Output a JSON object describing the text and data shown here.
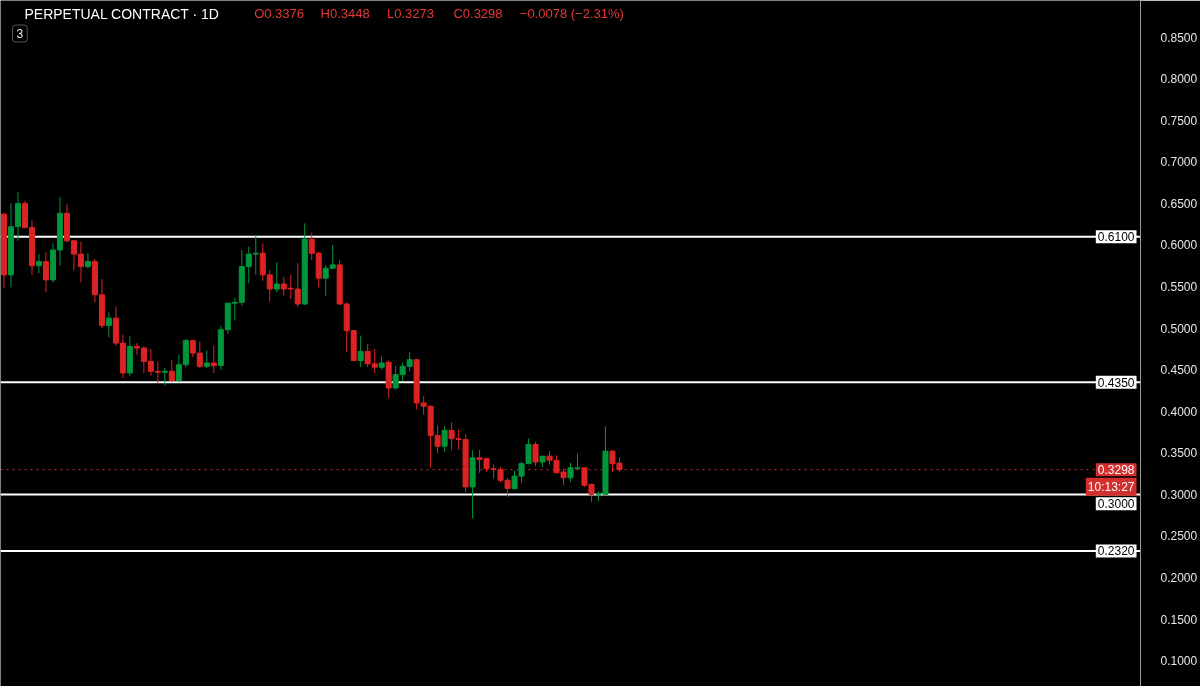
{
  "chart_data": {
    "type": "candlestick",
    "title": "PERPETUAL CONTRACT · 1D",
    "subtitle": "3",
    "annotations": [
      "O0.3376",
      "H0.3448",
      "L0.3273",
      "C0.3298",
      "−0.0078 (−2.31%)",
      {
        "text": "10:13:27",
        "y": 0.3298
      }
    ],
    "categories": [
      null,
      null,
      null,
      null,
      null,
      null,
      null,
      null,
      null,
      null,
      null,
      null,
      null,
      null,
      null,
      null,
      null,
      null,
      null,
      null,
      null,
      null,
      null,
      null,
      null,
      null,
      null,
      null,
      null,
      null,
      null,
      null,
      null,
      null,
      null,
      null,
      null,
      null,
      null,
      null,
      null,
      null,
      null,
      null,
      null,
      null,
      null,
      null,
      null,
      null,
      null,
      null,
      null,
      null,
      null,
      null,
      null,
      null,
      null,
      null,
      null,
      null,
      null,
      null,
      null,
      null,
      null,
      null,
      null,
      null,
      null,
      null,
      null,
      null,
      null,
      null,
      null,
      null,
      null,
      null,
      null,
      null,
      null,
      null,
      null,
      null,
      null,
      null,
      null,
      null,
      null,
      null,
      null,
      null,
      null,
      null,
      null,
      null,
      null,
      null,
      null,
      null,
      null,
      null,
      null,
      null,
      null,
      null,
      null,
      null,
      null,
      null,
      null,
      null,
      null,
      null,
      null,
      null,
      null,
      null,
      null,
      null,
      null,
      null,
      null,
      null,
      null,
      null,
      null,
      null,
      null,
      null,
      null,
      null,
      null,
      null,
      null,
      null,
      null,
      null,
      null,
      null,
      null,
      null,
      null,
      null,
      null,
      null,
      null,
      null,
      null,
      null,
      null,
      null,
      null,
      null,
      null,
      null,
      null,
      null,
      null,
      null,
      null
    ],
    "ohlc": [
      [
        0.637,
        0.639,
        0.548,
        0.564
      ],
      [
        0.564,
        0.65,
        0.549,
        0.622
      ],
      [
        0.622,
        0.664,
        0.605,
        0.65
      ],
      [
        0.65,
        0.653,
        0.62,
        0.621
      ],
      [
        0.621,
        0.63,
        0.564,
        0.575
      ],
      [
        0.575,
        0.589,
        0.566,
        0.58
      ],
      [
        0.58,
        0.591,
        0.543,
        0.558
      ],
      [
        0.558,
        0.602,
        0.555,
        0.594
      ],
      [
        0.594,
        0.658,
        0.575,
        0.638
      ],
      [
        0.638,
        0.649,
        0.603,
        0.605
      ],
      [
        0.605,
        0.606,
        0.569,
        0.589
      ],
      [
        0.589,
        0.604,
        0.555,
        0.574
      ],
      [
        0.574,
        0.59,
        0.572,
        0.58
      ],
      [
        0.58,
        0.583,
        0.531,
        0.54
      ],
      [
        0.54,
        0.559,
        0.5,
        0.503
      ],
      [
        0.503,
        0.519,
        0.489,
        0.512
      ],
      [
        0.512,
        0.526,
        0.479,
        0.482
      ],
      [
        0.482,
        0.492,
        0.44,
        0.446
      ],
      [
        0.446,
        0.491,
        0.442,
        0.478
      ],
      [
        0.478,
        0.482,
        0.468,
        0.476
      ],
      [
        0.476,
        0.478,
        0.446,
        0.46
      ],
      [
        0.46,
        0.475,
        0.443,
        0.448
      ],
      [
        0.448,
        0.46,
        0.434,
        0.447
      ],
      [
        0.447,
        0.452,
        0.431,
        0.448
      ],
      [
        0.448,
        0.462,
        0.435,
        0.437
      ],
      [
        0.437,
        0.468,
        0.435,
        0.456
      ],
      [
        0.456,
        0.487,
        0.453,
        0.485
      ],
      [
        0.485,
        0.486,
        0.465,
        0.47
      ],
      [
        0.47,
        0.484,
        0.452,
        0.454
      ],
      [
        0.454,
        0.473,
        0.452,
        0.458
      ],
      [
        0.458,
        0.479,
        0.446,
        0.455
      ],
      [
        0.455,
        0.503,
        0.45,
        0.498
      ],
      [
        0.498,
        0.53,
        0.493,
        0.53
      ],
      [
        0.53,
        0.536,
        0.509,
        0.531
      ],
      [
        0.531,
        0.594,
        0.527,
        0.574
      ],
      [
        0.574,
        0.598,
        0.554,
        0.589
      ],
      [
        0.589,
        0.612,
        0.564,
        0.59
      ],
      [
        0.59,
        0.602,
        0.557,
        0.564
      ],
      [
        0.564,
        0.57,
        0.532,
        0.547
      ],
      [
        0.547,
        0.579,
        0.543,
        0.553
      ],
      [
        0.553,
        0.562,
        0.539,
        0.547
      ],
      [
        0.548,
        0.564,
        0.535,
        0.547
      ],
      [
        0.547,
        0.578,
        0.525,
        0.529
      ],
      [
        0.529,
        0.626,
        0.528,
        0.607
      ],
      [
        0.607,
        0.615,
        0.582,
        0.59
      ],
      [
        0.59,
        0.592,
        0.549,
        0.56
      ],
      [
        0.56,
        0.576,
        0.539,
        0.572
      ],
      [
        0.572,
        0.6,
        0.571,
        0.576
      ],
      [
        0.576,
        0.582,
        0.528,
        0.529
      ],
      [
        0.529,
        0.531,
        0.471,
        0.497
      ],
      [
        0.497,
        0.497,
        0.46,
        0.461
      ],
      [
        0.461,
        0.491,
        0.453,
        0.472
      ],
      [
        0.472,
        0.481,
        0.453,
        0.457
      ],
      [
        0.457,
        0.475,
        0.446,
        0.453
      ],
      [
        0.453,
        0.466,
        0.45,
        0.458
      ],
      [
        0.459,
        0.461,
        0.416,
        0.428
      ],
      [
        0.428,
        0.455,
        0.426,
        0.444
      ],
      [
        0.444,
        0.459,
        0.436,
        0.454
      ],
      [
        0.454,
        0.471,
        0.448,
        0.462
      ],
      [
        0.462,
        0.463,
        0.402,
        0.41
      ],
      [
        0.41,
        0.418,
        0.396,
        0.406
      ],
      [
        0.406,
        0.407,
        0.332,
        0.371
      ],
      [
        0.371,
        0.383,
        0.35,
        0.358
      ],
      [
        0.358,
        0.382,
        0.351,
        0.377
      ],
      [
        0.377,
        0.387,
        0.353,
        0.367
      ],
      [
        0.367,
        0.378,
        0.354,
        0.366
      ],
      [
        0.366,
        0.372,
        0.303,
        0.309
      ],
      [
        0.309,
        0.353,
        0.271,
        0.344
      ],
      [
        0.344,
        0.354,
        0.326,
        0.342
      ],
      [
        0.343,
        0.344,
        0.327,
        0.331
      ],
      [
        0.331,
        0.336,
        0.319,
        0.33
      ],
      [
        0.33,
        0.333,
        0.314,
        0.317
      ],
      [
        0.317,
        0.32,
        0.297,
        0.307
      ],
      [
        0.307,
        0.329,
        0.306,
        0.322
      ],
      [
        0.322,
        0.339,
        0.314,
        0.337
      ],
      [
        0.337,
        0.367,
        0.336,
        0.36
      ],
      [
        0.36,
        0.363,
        0.334,
        0.339
      ],
      [
        0.339,
        0.346,
        0.333,
        0.346
      ],
      [
        0.346,
        0.352,
        0.336,
        0.341
      ],
      [
        0.341,
        0.347,
        0.326,
        0.326
      ],
      [
        0.327,
        0.331,
        0.311,
        0.32
      ],
      [
        0.32,
        0.338,
        0.315,
        0.332
      ],
      [
        0.331,
        0.349,
        0.33,
        0.332
      ],
      [
        0.332,
        0.332,
        0.309,
        0.311
      ],
      [
        0.312,
        0.313,
        0.291,
        0.3
      ],
      [
        0.3,
        0.304,
        0.292,
        0.301
      ],
      [
        0.3,
        0.382,
        0.3,
        0.352
      ],
      [
        0.352,
        0.353,
        0.327,
        0.337
      ],
      [
        0.3376,
        0.3448,
        0.3273,
        0.3298
      ],
      null,
      null,
      null,
      null,
      null,
      null,
      null,
      null,
      null,
      null,
      null,
      null,
      null,
      null,
      null,
      null,
      null,
      null,
      null,
      null,
      null,
      null,
      null,
      null,
      null,
      null,
      null,
      null,
      null,
      null,
      null,
      null,
      null,
      null,
      null,
      null,
      null,
      null,
      null,
      null,
      null,
      null,
      null,
      null,
      null,
      null,
      null,
      null,
      null,
      null,
      null,
      null,
      null,
      null,
      null,
      null,
      null,
      null,
      null,
      null,
      null,
      null,
      null,
      null,
      null,
      null,
      null,
      null,
      null,
      null,
      null,
      null,
      null,
      null
    ],
    "colors": [
      "#dc2323",
      "#00963c",
      "#00963c",
      "#dc2323",
      "#dc2323",
      "#00963c",
      "#dc2323",
      "#00963c",
      "#00963c",
      "#dc2323",
      "#dc2323",
      "#dc2323",
      "#00963c",
      "#dc2323",
      "#dc2323",
      "#00963c",
      "#dc2323",
      "#dc2323",
      "#00963c",
      "#dc2323",
      "#dc2323",
      "#dc2323",
      "#dc2323",
      "#00963c",
      "#dc2323",
      "#00963c",
      "#00963c",
      "#dc2323",
      "#dc2323",
      "#00963c",
      "#dc2323",
      "#00963c",
      "#00963c",
      "#00963c",
      "#00963c",
      "#00963c",
      "#00963c",
      "#dc2323",
      "#dc2323",
      "#00963c",
      "#dc2323",
      "#dc2323",
      "#dc2323",
      "#00963c",
      "#dc2323",
      "#dc2323",
      "#00963c",
      "#00963c",
      "#dc2323",
      "#dc2323",
      "#dc2323",
      "#00963c",
      "#dc2323",
      "#dc2323",
      "#00963c",
      "#dc2323",
      "#00963c",
      "#00963c",
      "#00963c",
      "#dc2323",
      "#dc2323",
      "#dc2323",
      "#dc2323",
      "#00963c",
      "#dc2323",
      "#dc2323",
      "#dc2323",
      "#00963c",
      "#dc2323",
      "#dc2323",
      "#dc2323",
      "#dc2323",
      "#dc2323",
      "#00963c",
      "#00963c",
      "#00963c",
      "#dc2323",
      "#00963c",
      "#dc2323",
      "#dc2323",
      "#dc2323",
      "#00963c",
      "#00963c",
      "#dc2323",
      "#dc2323",
      "#00963c",
      "#00963c",
      "#dc2323",
      "#dc2323",
      null,
      null,
      null,
      null,
      null,
      null,
      null,
      null,
      null,
      null,
      null,
      null,
      null,
      null,
      null,
      null,
      null,
      null,
      null,
      null,
      null,
      null,
      null,
      null,
      null,
      null,
      null,
      null,
      null,
      null,
      null,
      null,
      null,
      null,
      null,
      null,
      null,
      null,
      null,
      null,
      null,
      null,
      null,
      null,
      null,
      null,
      null,
      null,
      null,
      null,
      null,
      null,
      null,
      null,
      null,
      null,
      null,
      null,
      null,
      null,
      null,
      null,
      null,
      null,
      null,
      null,
      null,
      null,
      null,
      null,
      null,
      null,
      null,
      null
    ],
    "ylim": [
      0.069,
      0.894
    ],
    "yticks": [
      {
        "value": 0.1,
        "label": "0.1000"
      },
      {
        "value": 0.15,
        "label": "0.1500"
      },
      {
        "value": 0.2,
        "label": "0.2000"
      },
      {
        "value": 0.25,
        "label": "0.2500"
      },
      {
        "value": 0.3,
        "label": "0.3000"
      },
      {
        "value": 0.35,
        "label": "0.3500"
      },
      {
        "value": 0.4,
        "label": "0.4000"
      },
      {
        "value": 0.45,
        "label": "0.4500"
      },
      {
        "value": 0.5,
        "label": "0.5000"
      },
      {
        "value": 0.55,
        "label": "0.5500"
      },
      {
        "value": 0.6,
        "label": "0.6000"
      },
      {
        "value": 0.65,
        "label": "0.6500"
      },
      {
        "value": 0.7,
        "label": "0.7000"
      },
      {
        "value": 0.75,
        "label": "0.7500"
      },
      {
        "value": 0.8,
        "label": "0.8000"
      },
      {
        "value": 0.85,
        "label": "0.8500"
      }
    ],
    "ref_lines": [
      {
        "axis": "y",
        "value": 0.61,
        "label": "0.6100",
        "color": "#ffffff",
        "line_style": "solid"
      },
      {
        "axis": "y",
        "value": 0.435,
        "label": "0.4350",
        "color": "#ffffff",
        "line_style": "solid"
      },
      {
        "axis": "y",
        "value": 0.3,
        "label": "0.3000",
        "color": "#ffffff",
        "line_style": "solid"
      },
      {
        "axis": "y",
        "value": 0.232,
        "label": "0.2320",
        "color": "#ffffff",
        "line_style": "solid"
      },
      {
        "axis": "y",
        "value": 0.3298,
        "label": "0.3298",
        "color": "#d32f2f",
        "line_style": "dotted"
      }
    ],
    "tick_labels": "y"
  }
}
